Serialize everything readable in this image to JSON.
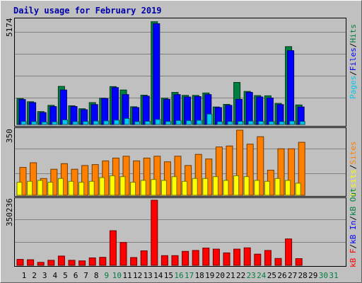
{
  "chart_data": [
    {
      "type": "bar",
      "title": "Daily usage for February 2019",
      "panel": "hits",
      "ymax_label": "5174",
      "ylim": [
        0,
        5174
      ],
      "x": [
        1,
        2,
        3,
        4,
        5,
        6,
        7,
        8,
        9,
        10,
        11,
        12,
        13,
        14,
        15,
        16,
        17,
        18,
        19,
        20,
        21,
        22,
        23,
        24,
        25,
        26,
        27,
        28,
        29,
        30,
        31
      ],
      "weekend_days": [
        9,
        10,
        16,
        17,
        23,
        24,
        30,
        31
      ],
      "legend": [
        {
          "label": "Pages",
          "color": "#00c8f0"
        },
        {
          "label": "/",
          "color": "#000000"
        },
        {
          "label": "Files",
          "color": "#0000ff"
        },
        {
          "label": "/",
          "color": "#000000"
        },
        {
          "label": "Hits",
          "color": "#008040"
        }
      ],
      "series": [
        {
          "name": "Hits",
          "color": "#008040",
          "values": [
            1300,
            1140,
            650,
            960,
            1910,
            940,
            790,
            1100,
            1320,
            1900,
            1730,
            890,
            1470,
            5150,
            1320,
            1610,
            1460,
            1460,
            1580,
            880,
            1010,
            2110,
            1660,
            1450,
            1440,
            1060,
            3900,
            980,
            0,
            0,
            0
          ]
        },
        {
          "name": "Files",
          "color": "#0000ff",
          "values": [
            1250,
            1100,
            600,
            900,
            1730,
            900,
            740,
            1000,
            1300,
            1850,
            1500,
            850,
            1420,
            5050,
            1260,
            1500,
            1380,
            1400,
            1500,
            850,
            960,
            1260,
            1610,
            1380,
            1330,
            1000,
            3700,
            880,
            0,
            0,
            0
          ]
        },
        {
          "name": "Pages",
          "color": "#00c8f0",
          "values": [
            150,
            140,
            120,
            130,
            230,
            140,
            150,
            170,
            180,
            220,
            300,
            140,
            160,
            250,
            150,
            200,
            190,
            210,
            520,
            140,
            150,
            160,
            170,
            160,
            150,
            140,
            170,
            150,
            0,
            0,
            0
          ]
        }
      ]
    },
    {
      "type": "bar",
      "panel": "visits",
      "ymax_label": "350",
      "ylim": [
        0,
        350
      ],
      "x": [
        1,
        2,
        3,
        4,
        5,
        6,
        7,
        8,
        9,
        10,
        11,
        12,
        13,
        14,
        15,
        16,
        17,
        18,
        19,
        20,
        21,
        22,
        23,
        24,
        25,
        26,
        27,
        28,
        29,
        30,
        31
      ],
      "legend": [
        {
          "label": "Visits",
          "color": "#ffff00"
        },
        {
          "label": "/",
          "color": "#000000"
        },
        {
          "label": "Sites",
          "color": "#ff8000"
        }
      ],
      "series": [
        {
          "name": "Sites",
          "color": "#ff8000",
          "values": [
            150,
            175,
            90,
            140,
            170,
            140,
            160,
            165,
            185,
            200,
            210,
            185,
            200,
            210,
            180,
            210,
            160,
            220,
            195,
            260,
            265,
            350,
            275,
            315,
            135,
            250,
            250,
            285,
            0,
            0,
            0
          ]
        },
        {
          "name": "Visits",
          "color": "#ffff00",
          "values": [
            70,
            75,
            80,
            70,
            90,
            75,
            70,
            75,
            95,
            105,
            100,
            70,
            80,
            85,
            80,
            100,
            75,
            90,
            90,
            100,
            80,
            105,
            100,
            80,
            75,
            90,
            80,
            65,
            0,
            0,
            0
          ]
        }
      ]
    },
    {
      "type": "bar",
      "panel": "kbytes",
      "ymax_label": "350236",
      "ylim": [
        0,
        350236
      ],
      "x": [
        1,
        2,
        3,
        4,
        5,
        6,
        7,
        8,
        9,
        10,
        11,
        12,
        13,
        14,
        15,
        16,
        17,
        18,
        19,
        20,
        21,
        22,
        23,
        24,
        25,
        26,
        27,
        28,
        29,
        30,
        31
      ],
      "legend": [
        {
          "label": "kB F",
          "color": "#ff0000"
        },
        {
          "label": "/",
          "color": "#000000"
        },
        {
          "label": "kB In",
          "color": "#0000ff"
        },
        {
          "label": "/",
          "color": "#000000"
        },
        {
          "label": "kB Out",
          "color": "#008040"
        }
      ],
      "series": [
        {
          "name": "kB F",
          "color": "#ff0000",
          "values": [
            32000,
            30000,
            16000,
            27000,
            50000,
            27000,
            24000,
            40000,
            43000,
            186000,
            123000,
            42000,
            78000,
            350236,
            52000,
            52000,
            75000,
            80000,
            93000,
            87000,
            67000,
            87000,
            94000,
            60000,
            80000,
            37000,
            142000,
            36000,
            0,
            0,
            0
          ]
        }
      ]
    }
  ]
}
